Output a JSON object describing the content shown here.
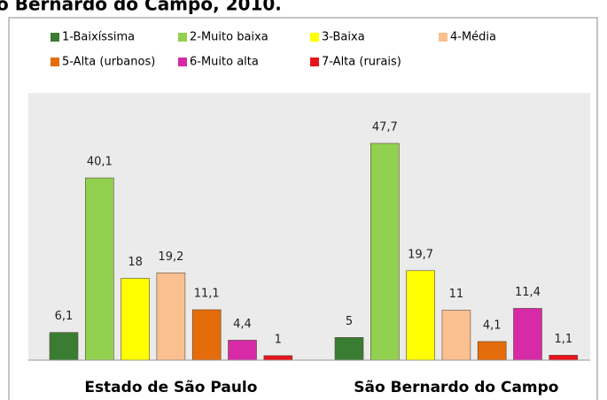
{
  "chart_data": {
    "type": "bar",
    "title": "o Bernardo do Campo, 2010.",
    "categories": [
      "Estado de São Paulo",
      "São Bernardo do Campo"
    ],
    "ylim": [
      0,
      58.8
    ],
    "series": [
      {
        "name": "1-Baixíssima",
        "color": "#3a7d32",
        "values": [
          6.1,
          5
        ],
        "value_labels": [
          "6,1",
          "5"
        ]
      },
      {
        "name": "2-Muito baixa",
        "color": "#92d050",
        "values": [
          40.1,
          47.7
        ],
        "value_labels": [
          "40,1",
          "47,7"
        ]
      },
      {
        "name": "3-Baixa",
        "color": "#ffff00",
        "values": [
          18,
          19.7
        ],
        "value_labels": [
          "18",
          "19,7"
        ]
      },
      {
        "name": "4-Média",
        "color": "#fac090",
        "values": [
          19.2,
          11
        ],
        "value_labels": [
          "19,2",
          "11"
        ]
      },
      {
        "name": "5-Alta (urbanos)",
        "color": "#e46c0a",
        "values": [
          11.1,
          4.1
        ],
        "value_labels": [
          "11,1",
          "4,1"
        ]
      },
      {
        "name": "6-Muito alta",
        "color": "#d62aa6",
        "values": [
          4.4,
          11.4
        ],
        "value_labels": [
          "4,4",
          "11,4"
        ]
      },
      {
        "name": "7-Alta (rurais)",
        "color": "#e8141c",
        "values": [
          1,
          1.1
        ],
        "value_labels": [
          "1",
          "1,1"
        ]
      }
    ]
  }
}
